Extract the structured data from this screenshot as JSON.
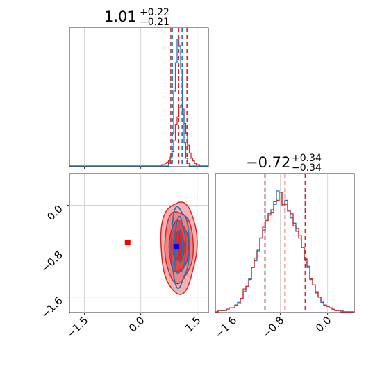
{
  "chart_data": {
    "type": "corner",
    "colors": {
      "series_a": "#1f77b4",
      "series_b": "#d62728",
      "marker_truth_a": "#0000ff",
      "marker_truth_b": "#ff0000"
    },
    "grid": true,
    "panels": {
      "top_hist": {
        "title_value": "1.01",
        "title_plus": "+0.22",
        "title_minus": "−0.21",
        "xlim": [
          -1.9,
          1.8
        ],
        "vlines_series_b": [
          0.8,
          1.01,
          1.23
        ],
        "vlines_series_a": [
          0.84,
          1.1
        ]
      },
      "right_hist": {
        "title_value": "−0.72",
        "title_plus": "+0.34",
        "title_minus": "−0.34",
        "xlim": [
          -1.9,
          0.45
        ],
        "xticks": [
          -1.6,
          -0.8,
          0.0
        ],
        "xtick_labels": [
          "−1.6",
          "−0.8",
          "0.0"
        ],
        "vlines_series_b": [
          -1.06,
          -0.72,
          -0.38
        ],
        "vlines_series_a": [
          -1.06
        ]
      },
      "scatter": {
        "xlim": [
          -1.9,
          1.8
        ],
        "ylim": [
          -1.87,
          0.55
        ],
        "xticks": [
          -1.5,
          0.0,
          1.5
        ],
        "xtick_labels": [
          "−1.5",
          "0.0",
          "1.5"
        ],
        "yticks": [
          0.0,
          -0.8,
          -1.6
        ],
        "ytick_labels": [
          "0.0",
          "−0.8",
          "−1.6"
        ],
        "markers": [
          {
            "name": "series_b_point",
            "x": -0.35,
            "y": -0.65
          },
          {
            "name": "series_a_point",
            "x": 0.95,
            "y": -0.72
          }
        ],
        "contours_b": [
          {
            "cx": 1.01,
            "cy": -0.72,
            "rx": 0.48,
            "ry": 0.8
          },
          {
            "cx": 1.01,
            "cy": -0.72,
            "rx": 0.38,
            "ry": 0.62
          },
          {
            "cx": 1.01,
            "cy": -0.72,
            "rx": 0.26,
            "ry": 0.44
          },
          {
            "cx": 1.01,
            "cy": -0.72,
            "rx": 0.15,
            "ry": 0.26
          }
        ],
        "contours_a": [
          {
            "cx": 1.04,
            "cy": -0.72,
            "rx": 0.24,
            "ry": 0.68
          },
          {
            "cx": 1.04,
            "cy": -0.72,
            "rx": 0.15,
            "ry": 0.48
          },
          {
            "cx": 1.04,
            "cy": -0.72,
            "rx": 0.07,
            "ry": 0.28
          }
        ]
      }
    },
    "hist_top_series_b": [
      0,
      0,
      0,
      0,
      0,
      0,
      0,
      0,
      0,
      0,
      0,
      0,
      0,
      0,
      0,
      0,
      0,
      0,
      0,
      0,
      0,
      0,
      0,
      0,
      0,
      0,
      0,
      0,
      0,
      0,
      0,
      0,
      0,
      0,
      0,
      0,
      0,
      0,
      0,
      0,
      0,
      0,
      0,
      0,
      0,
      0,
      0,
      0,
      0,
      0,
      0,
      0,
      0,
      1,
      1,
      2,
      3,
      4,
      6,
      11,
      20,
      32,
      38,
      45,
      47,
      44,
      33,
      25,
      16,
      10,
      6,
      4,
      2,
      1,
      1,
      0,
      0,
      0,
      0,
      0
    ],
    "hist_top_series_a": [
      0,
      0,
      0,
      0,
      0,
      0,
      0,
      0,
      0,
      0,
      0,
      0,
      0,
      0,
      0,
      0,
      0,
      0,
      0,
      0,
      0,
      0,
      0,
      0,
      0,
      0,
      0,
      0,
      0,
      0,
      0,
      0,
      0,
      0,
      0,
      0,
      0,
      0,
      0,
      0,
      0,
      0,
      0,
      0,
      0,
      0,
      0,
      0,
      0,
      0,
      0,
      0,
      0,
      0,
      0,
      0,
      0,
      2,
      7,
      25,
      58,
      80,
      98,
      93,
      75,
      40,
      18,
      6,
      2,
      0,
      0,
      0,
      0,
      0,
      0,
      0,
      0,
      0,
      0,
      0
    ],
    "hist_right_series_a": [
      0,
      1,
      1,
      1,
      2,
      3,
      3,
      5,
      7,
      10,
      15,
      19,
      25,
      33,
      38,
      46,
      55,
      61,
      68,
      72,
      76,
      80,
      90,
      89,
      79,
      83,
      75,
      70,
      66,
      60,
      57,
      48,
      39,
      34,
      24,
      20,
      15,
      11,
      7,
      5,
      4,
      3,
      2,
      1,
      1,
      1,
      0,
      0,
      0,
      0
    ],
    "hist_right_series_b": [
      0,
      1,
      1,
      1,
      2,
      3,
      3,
      5,
      6,
      10,
      17,
      19,
      24,
      33,
      40,
      45,
      55,
      63,
      68,
      73,
      74,
      82,
      83,
      89,
      80,
      80,
      75,
      73,
      64,
      62,
      55,
      48,
      40,
      33,
      25,
      20,
      14,
      11,
      8,
      5,
      4,
      3,
      2,
      1,
      1,
      0,
      0,
      0,
      0,
      0
    ]
  }
}
